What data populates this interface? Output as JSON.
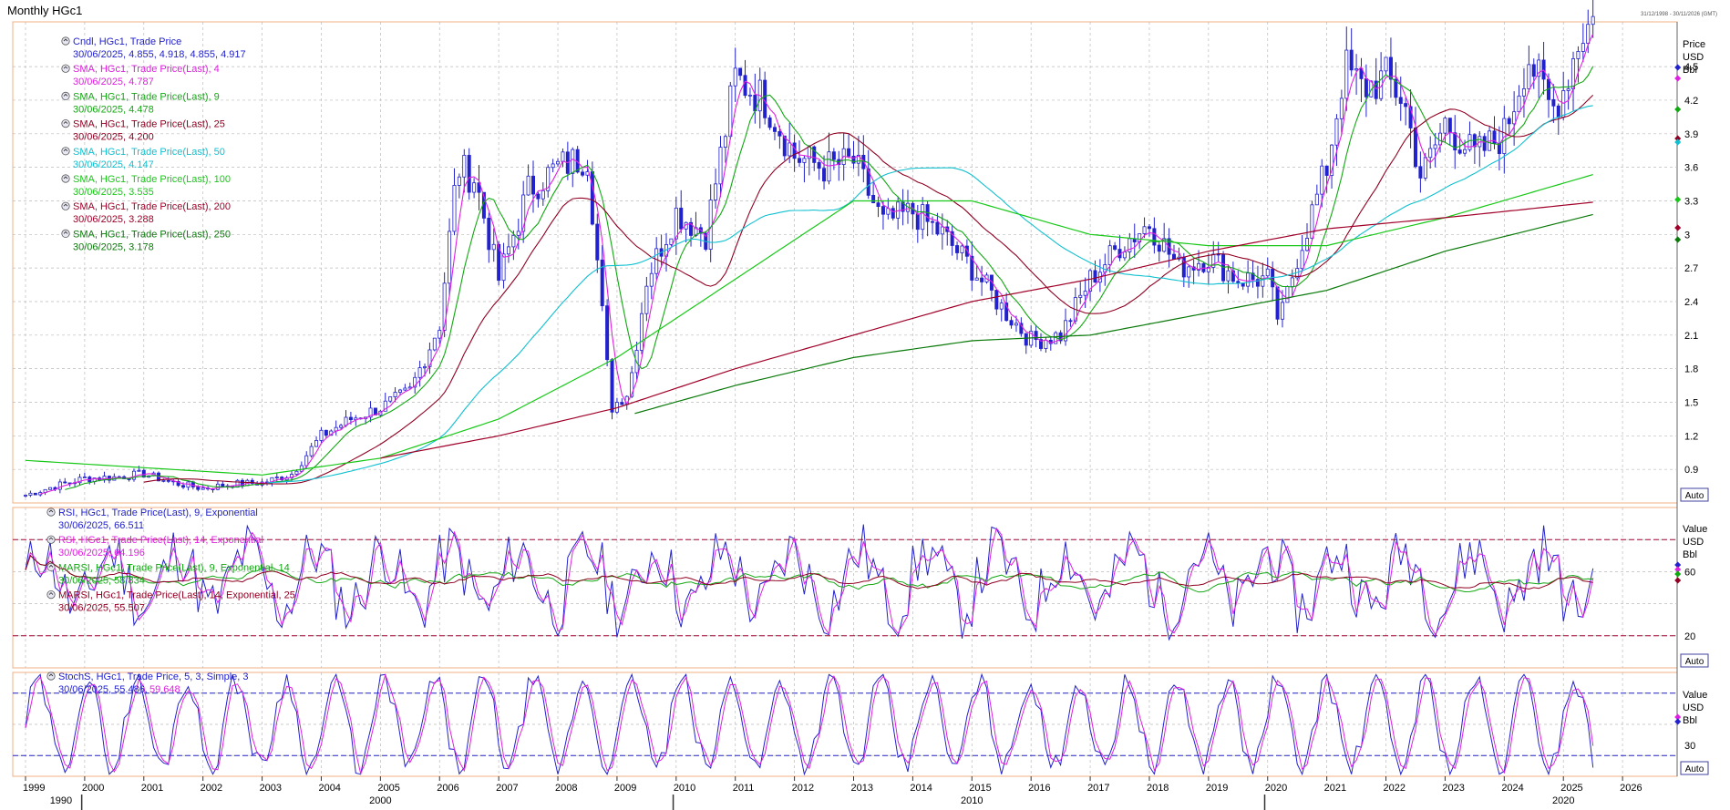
{
  "window": {
    "title": "Monthly HGc1",
    "date_range": "31/12/1998 - 30/11/2026 (GMT)"
  },
  "axis_controls": {
    "auto_label": "Auto"
  },
  "main_panel": {
    "axis_header": [
      "Price",
      "USD",
      "Bbl"
    ],
    "y_ticks": [
      0.9,
      1.2,
      1.5,
      1.8,
      2.1,
      2.4,
      2.7,
      3,
      3.3,
      3.6,
      3.9,
      4.2,
      4.5
    ],
    "legend": [
      {
        "title": "Cndl, HGc1, Trade Price",
        "values": "30/06/2025, 4.855, 4.918, 4.855, 4.917",
        "color": "#2222cc"
      },
      {
        "title": "SMA, HGc1, Trade Price(Last),  4",
        "values": "30/06/2025, 4.787",
        "color": "#e020e0"
      },
      {
        "title": "SMA, HGc1, Trade Price(Last),  9",
        "values": "30/06/2025, 4.478",
        "color": "#12a812"
      },
      {
        "title": "SMA, HGc1, Trade Price(Last),  25",
        "values": "30/06/2025, 4.200",
        "color": "#900022"
      },
      {
        "title": "SMA, HGc1, Trade Price(Last),  50",
        "values": "30/06/2025, 4.147",
        "color": "#10c0d0"
      },
      {
        "title": "SMA, HGc1, Trade Price(Last),  100",
        "values": "30/06/2025, 3.535",
        "color": "#18c818"
      },
      {
        "title": "SMA, HGc1, Trade Price(Last),  200",
        "values": "30/06/2025, 3.288",
        "color": "#a00028"
      },
      {
        "title": "SMA, HGc1, Trade Price(Last),  250",
        "values": "30/06/2025, 3.178",
        "color": "#0a7a0a"
      }
    ]
  },
  "rsi_panel": {
    "axis_header": [
      "Value",
      "USD",
      "Bbl"
    ],
    "y_ticks": [
      20,
      60
    ],
    "levels": [
      20,
      80
    ],
    "legend": [
      {
        "title": "RSI, HGc1, Trade Price(Last),  9, Exponential",
        "values": "30/06/2025, 66.511",
        "color": "#2222cc"
      },
      {
        "title": "RSI, HGc1, Trade Price(Last),  14, Exponential",
        "values": "30/06/2025, 64.196",
        "color": "#e020e0"
      },
      {
        "title": "MARSI, HGc1, Trade Price(Last),  9, Exponential, 14",
        "values": "30/06/2025, 58.834",
        "color": "#12a812"
      },
      {
        "title": "MARSI, HGc1, Trade Price(Last),  14, Exponential, 25",
        "values": "30/06/2025, 55.507",
        "color": "#900022"
      }
    ]
  },
  "stoch_panel": {
    "axis_header": [
      "Value",
      "USD",
      "Bbl"
    ],
    "y_ticks": [
      30
    ],
    "levels": [
      20,
      80
    ],
    "legend_title": "StochS, HGc1, Trade Price,  5, 3, Simple, 3",
    "legend_values": "30/06/2025, 55.486,",
    "legend_value2": "59.648",
    "legend_color": "#2222cc",
    "legend_color2": "#e020e0"
  },
  "x_axis": {
    "years": [
      "1999",
      "2000",
      "2001",
      "2002",
      "2003",
      "2004",
      "2005",
      "2006",
      "2007",
      "2008",
      "2009",
      "2010",
      "2011",
      "2012",
      "2013",
      "2014",
      "2015",
      "2016",
      "2017",
      "2018",
      "2019",
      "2020",
      "2021",
      "2022",
      "2023",
      "2024",
      "2025",
      "2026"
    ],
    "decades": [
      "1990",
      "2000",
      "2010",
      "2020"
    ]
  },
  "chart_data": {
    "type": "line",
    "title": "Monthly HGc1",
    "ylabel": "Price USD",
    "ylim": [
      0.6,
      4.9
    ],
    "series": [
      {
        "name": "Cndl, HGc1, Trade Price",
        "x": [
          1999.0,
          1999.5,
          2000,
          2000.5,
          2001,
          2001.5,
          2002,
          2002.5,
          2003,
          2003.5,
          2004,
          2004.5,
          2005,
          2005.5,
          2006,
          2006.3,
          2006.6,
          2007,
          2007.5,
          2008,
          2008.5,
          2008.9,
          2009.2,
          2009.5,
          2010,
          2010.5,
          2011,
          2011.5,
          2012,
          2012.5,
          2013,
          2013.5,
          2014,
          2014.5,
          2015,
          2015.5,
          2016,
          2016.5,
          2017,
          2017.5,
          2018,
          2018.5,
          2019,
          2019.5,
          2020,
          2020.2,
          2020.5,
          2021,
          2021.3,
          2021.6,
          2022,
          2022.3,
          2022.6,
          2023,
          2023.5,
          2024,
          2024.4,
          2024.8,
          2025,
          2025.3,
          2025.5
        ],
        "values": [
          0.67,
          0.75,
          0.82,
          0.83,
          0.86,
          0.78,
          0.73,
          0.77,
          0.78,
          0.86,
          1.2,
          1.35,
          1.45,
          1.6,
          2.2,
          3.6,
          3.5,
          2.6,
          3.4,
          3.6,
          3.7,
          1.45,
          1.6,
          2.6,
          3.2,
          3.0,
          4.4,
          4.2,
          3.7,
          3.6,
          3.65,
          3.1,
          3.2,
          3.0,
          2.7,
          2.35,
          2.05,
          2.1,
          2.6,
          2.9,
          3.1,
          2.7,
          2.8,
          2.6,
          2.6,
          2.2,
          2.8,
          3.6,
          4.5,
          4.3,
          4.4,
          4.2,
          3.5,
          4.0,
          3.7,
          3.9,
          4.6,
          4.1,
          4.3,
          4.8,
          4.917
        ]
      },
      {
        "name": "SMA, HGc1, Trade Price(Last),  100",
        "x": [
          1999,
          2003,
          2005,
          2007,
          2009,
          2011,
          2013,
          2015,
          2017,
          2019,
          2021,
          2023,
          2025.5
        ],
        "values": [
          0.98,
          0.85,
          1.0,
          1.35,
          1.9,
          2.6,
          3.3,
          3.3,
          3.0,
          2.9,
          2.9,
          3.15,
          3.535
        ]
      },
      {
        "name": "SMA, HGc1, Trade Price(Last),  200",
        "x": [
          2005,
          2007,
          2009,
          2011,
          2013,
          2015,
          2017,
          2019,
          2021,
          2023,
          2025.5
        ],
        "values": [
          1.0,
          1.2,
          1.45,
          1.8,
          2.1,
          2.4,
          2.6,
          2.85,
          3.05,
          3.15,
          3.288
        ]
      },
      {
        "name": "SMA, HGc1, Trade Price(Last),  250",
        "x": [
          2009.3,
          2011,
          2013,
          2015,
          2017,
          2019,
          2021,
          2023,
          2025.5
        ],
        "values": [
          1.4,
          1.65,
          1.9,
          2.05,
          2.1,
          2.3,
          2.5,
          2.85,
          3.178
        ]
      }
    ]
  }
}
